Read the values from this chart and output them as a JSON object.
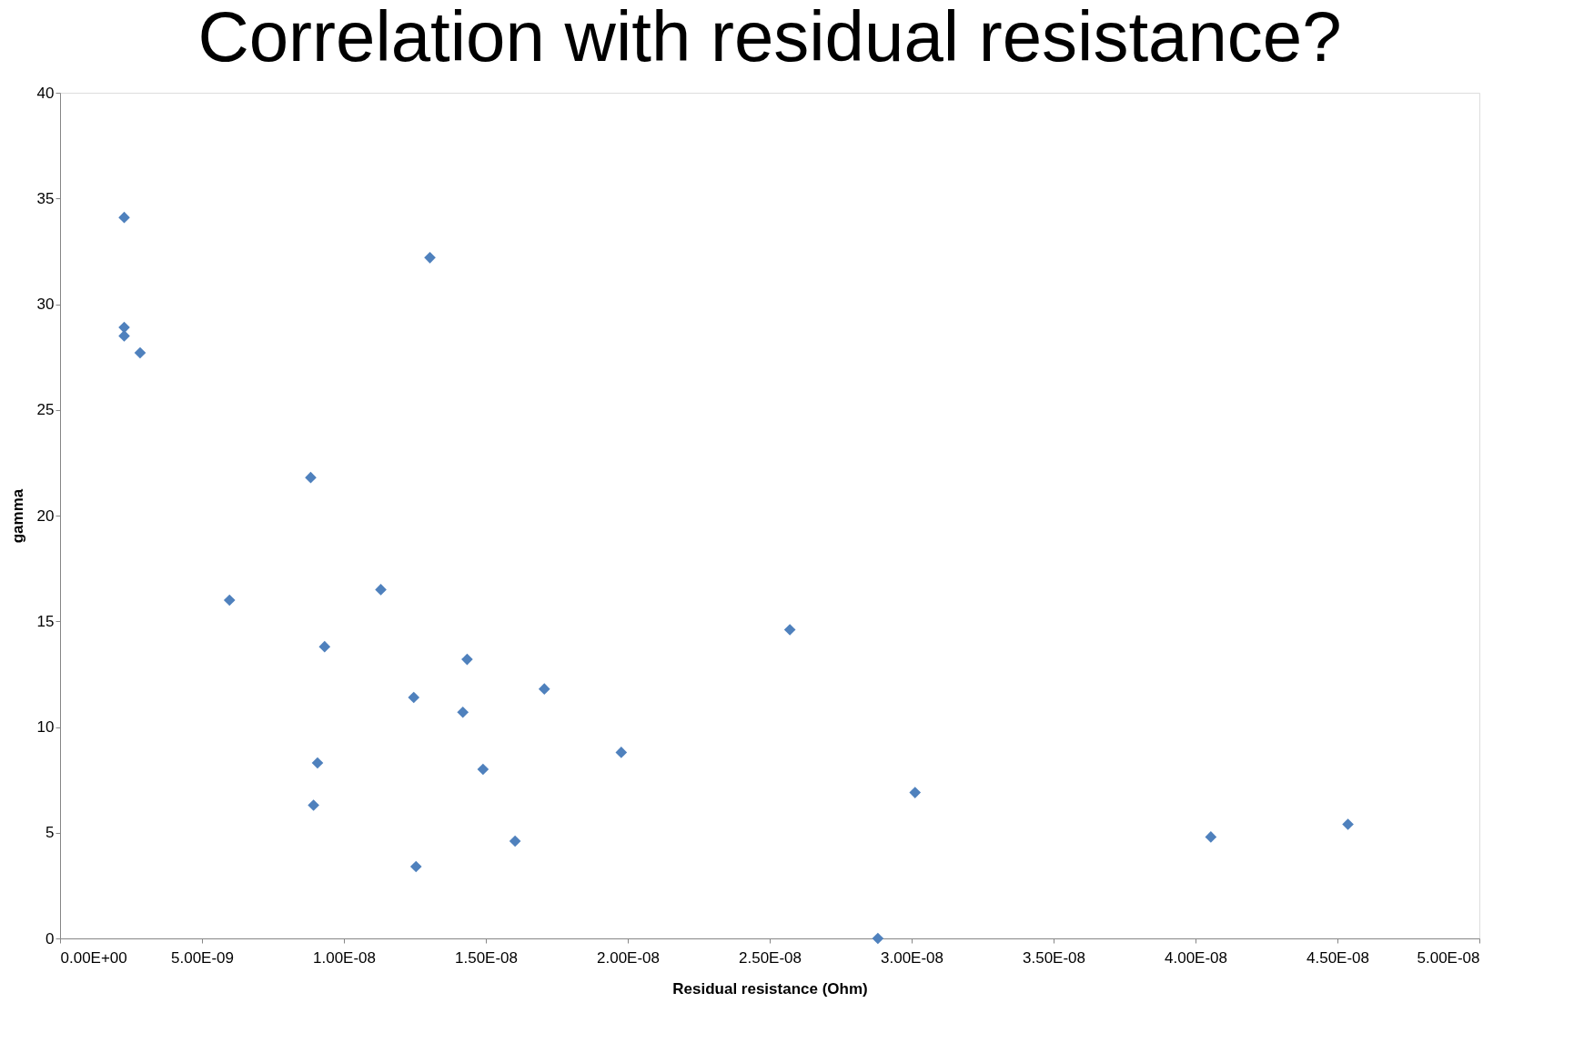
{
  "chart_data": {
    "type": "scatter",
    "title": "Correlation with residual resistance?",
    "xlabel": "Residual resistance (Ohm)",
    "ylabel": "gamma",
    "series": [
      {
        "color": "#4f81bd",
        "x": [
          2.26e-09,
          1.303e-08,
          2.26e-09,
          2.26e-09,
          2.82e-09,
          8.83e-09,
          5.97e-09,
          1.13e-08,
          2.571e-08,
          9.32e-09,
          1.434e-08,
          1.706e-08,
          1.246e-08,
          1.419e-08,
          1.977e-08,
          9.07e-09,
          1.49e-08,
          3.012e-08,
          8.93e-09,
          4.054e-08,
          4.537e-08,
          1.603e-08,
          1.254e-08,
          2.881e-08
        ],
        "values": [
          34.1,
          32.2,
          28.9,
          28.5,
          27.7,
          21.8,
          16.0,
          16.5,
          14.6,
          13.8,
          13.2,
          11.8,
          11.4,
          10.7,
          8.8,
          8.3,
          8.0,
          6.9,
          6.3,
          4.8,
          5.4,
          4.6,
          3.4,
          0
        ]
      }
    ],
    "xlim": [
      0,
      5e-08
    ],
    "ylim": [
      0,
      40
    ],
    "xticks": [
      {
        "value": 0,
        "label": "0.00E+00"
      },
      {
        "value": 5e-09,
        "label": "5.00E-09"
      },
      {
        "value": 1e-08,
        "label": "1.00E-08"
      },
      {
        "value": 1.5e-08,
        "label": "1.50E-08"
      },
      {
        "value": 2e-08,
        "label": "2.00E-08"
      },
      {
        "value": 2.5e-08,
        "label": "2.50E-08"
      },
      {
        "value": 3e-08,
        "label": "3.00E-08"
      },
      {
        "value": 3.5e-08,
        "label": "3.50E-08"
      },
      {
        "value": 4e-08,
        "label": "4.00E-08"
      },
      {
        "value": 4.5e-08,
        "label": "4.50E-08"
      },
      {
        "value": 5e-08,
        "label": "5.00E-08"
      }
    ],
    "yticks": [
      0,
      5,
      10,
      15,
      20,
      25,
      30,
      35,
      40
    ],
    "grid": false,
    "marker": "diamond"
  }
}
